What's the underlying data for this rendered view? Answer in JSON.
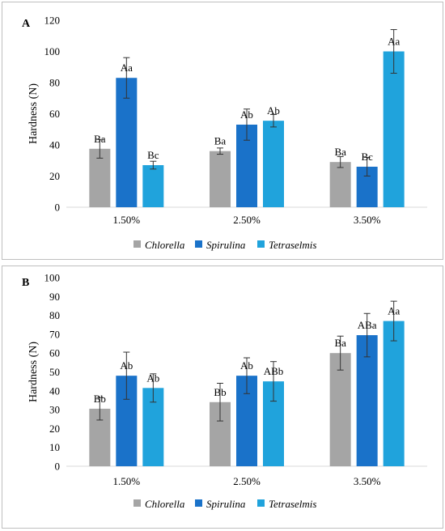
{
  "chart_data": [
    {
      "type": "bar",
      "panel_label": "A",
      "categories": [
        "1.50%",
        "2.50%",
        "3.50%"
      ],
      "ylabel": "Hardness (N)",
      "ylim": [
        0,
        120
      ],
      "yticks": [
        0,
        20,
        40,
        60,
        80,
        100,
        120
      ],
      "grid": false,
      "legend_position": "bottom",
      "series": [
        {
          "name": "Chlorella",
          "color": "#a5a5a5",
          "values": [
            37.5,
            36,
            29
          ],
          "errors": [
            6,
            2,
            3.5
          ],
          "labels": [
            "Ba",
            "Ba",
            "Ba"
          ]
        },
        {
          "name": "Spirulina",
          "color": "#1a72c9",
          "values": [
            83,
            53,
            26
          ],
          "errors": [
            13,
            10,
            6
          ],
          "labels": [
            "Aa",
            "Ab",
            "Bc"
          ]
        },
        {
          "name": "Tetraselmis",
          "color": "#20a3dc",
          "values": [
            27,
            55.5,
            100
          ],
          "errors": [
            2.5,
            4,
            14
          ],
          "labels": [
            "Bc",
            "Ab",
            "Aa"
          ]
        }
      ]
    },
    {
      "type": "bar",
      "panel_label": "B",
      "categories": [
        "1.50%",
        "2.50%",
        "3.50%"
      ],
      "ylabel": "Hardness (N)",
      "ylim": [
        0,
        100
      ],
      "yticks": [
        0,
        10,
        20,
        30,
        40,
        50,
        60,
        70,
        80,
        90,
        100
      ],
      "grid": false,
      "legend_position": "bottom",
      "series": [
        {
          "name": "Chlorella",
          "color": "#a5a5a5",
          "values": [
            30.5,
            34,
            60
          ],
          "errors": [
            6,
            10,
            9
          ],
          "labels": [
            "Bb",
            "Bb",
            "Ba"
          ]
        },
        {
          "name": "Spirulina",
          "color": "#1a72c9",
          "values": [
            48,
            48,
            69.5
          ],
          "errors": [
            12.5,
            9.5,
            11.5
          ],
          "labels": [
            "Ab",
            "Ab",
            "ABa"
          ]
        },
        {
          "name": "Tetraselmis",
          "color": "#20a3dc",
          "values": [
            41.5,
            45,
            77
          ],
          "errors": [
            7.5,
            10.5,
            10.5
          ],
          "labels": [
            "Ab",
            "ABb",
            "Aa"
          ]
        }
      ]
    }
  ]
}
